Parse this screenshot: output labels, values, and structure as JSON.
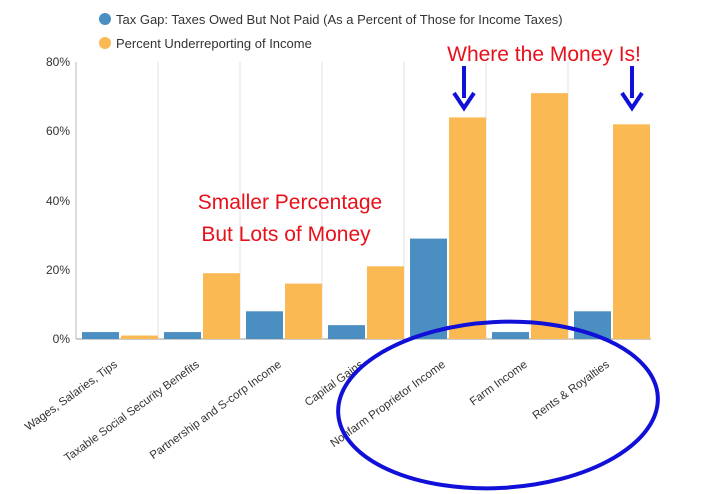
{
  "chart_data": {
    "type": "bar",
    "title": "",
    "xlabel": "",
    "ylabel": "",
    "ylim": [
      0,
      80
    ],
    "y_ticks": [
      "0%",
      "20%",
      "40%",
      "60%",
      "80%"
    ],
    "y_tick_values": [
      0,
      20,
      40,
      60,
      80
    ],
    "grid": "vertical lines between categories",
    "legend_position": "top-left",
    "categories": [
      "Wages, Salaries, Tips",
      "Taxable Social Security Benefits",
      "Partnership and S-corp Income",
      "Capital Gains",
      "Nonfarm Proprietor Income",
      "Farm Income",
      "Rents & Royalties"
    ],
    "series": [
      {
        "name": "Tax Gap: Taxes Owed But Not Paid (As a Percent of Those for Income Taxes)",
        "color": "#4a8ec2",
        "values": [
          2,
          2,
          8,
          4,
          29,
          2,
          8
        ]
      },
      {
        "name": "Percent Underreporting of Income",
        "color": "#fbb954",
        "values": [
          1,
          19,
          16,
          21,
          64,
          71,
          62
        ]
      }
    ],
    "annotations": {
      "smaller_line1": "Smaller Percentage",
      "smaller_line2": "But Lots of Money",
      "where_money": "Where the Money Is!"
    },
    "annotation_color": "#e8101a",
    "arrow_color": "#1010d8",
    "ellipse_color": "#1010d8"
  }
}
